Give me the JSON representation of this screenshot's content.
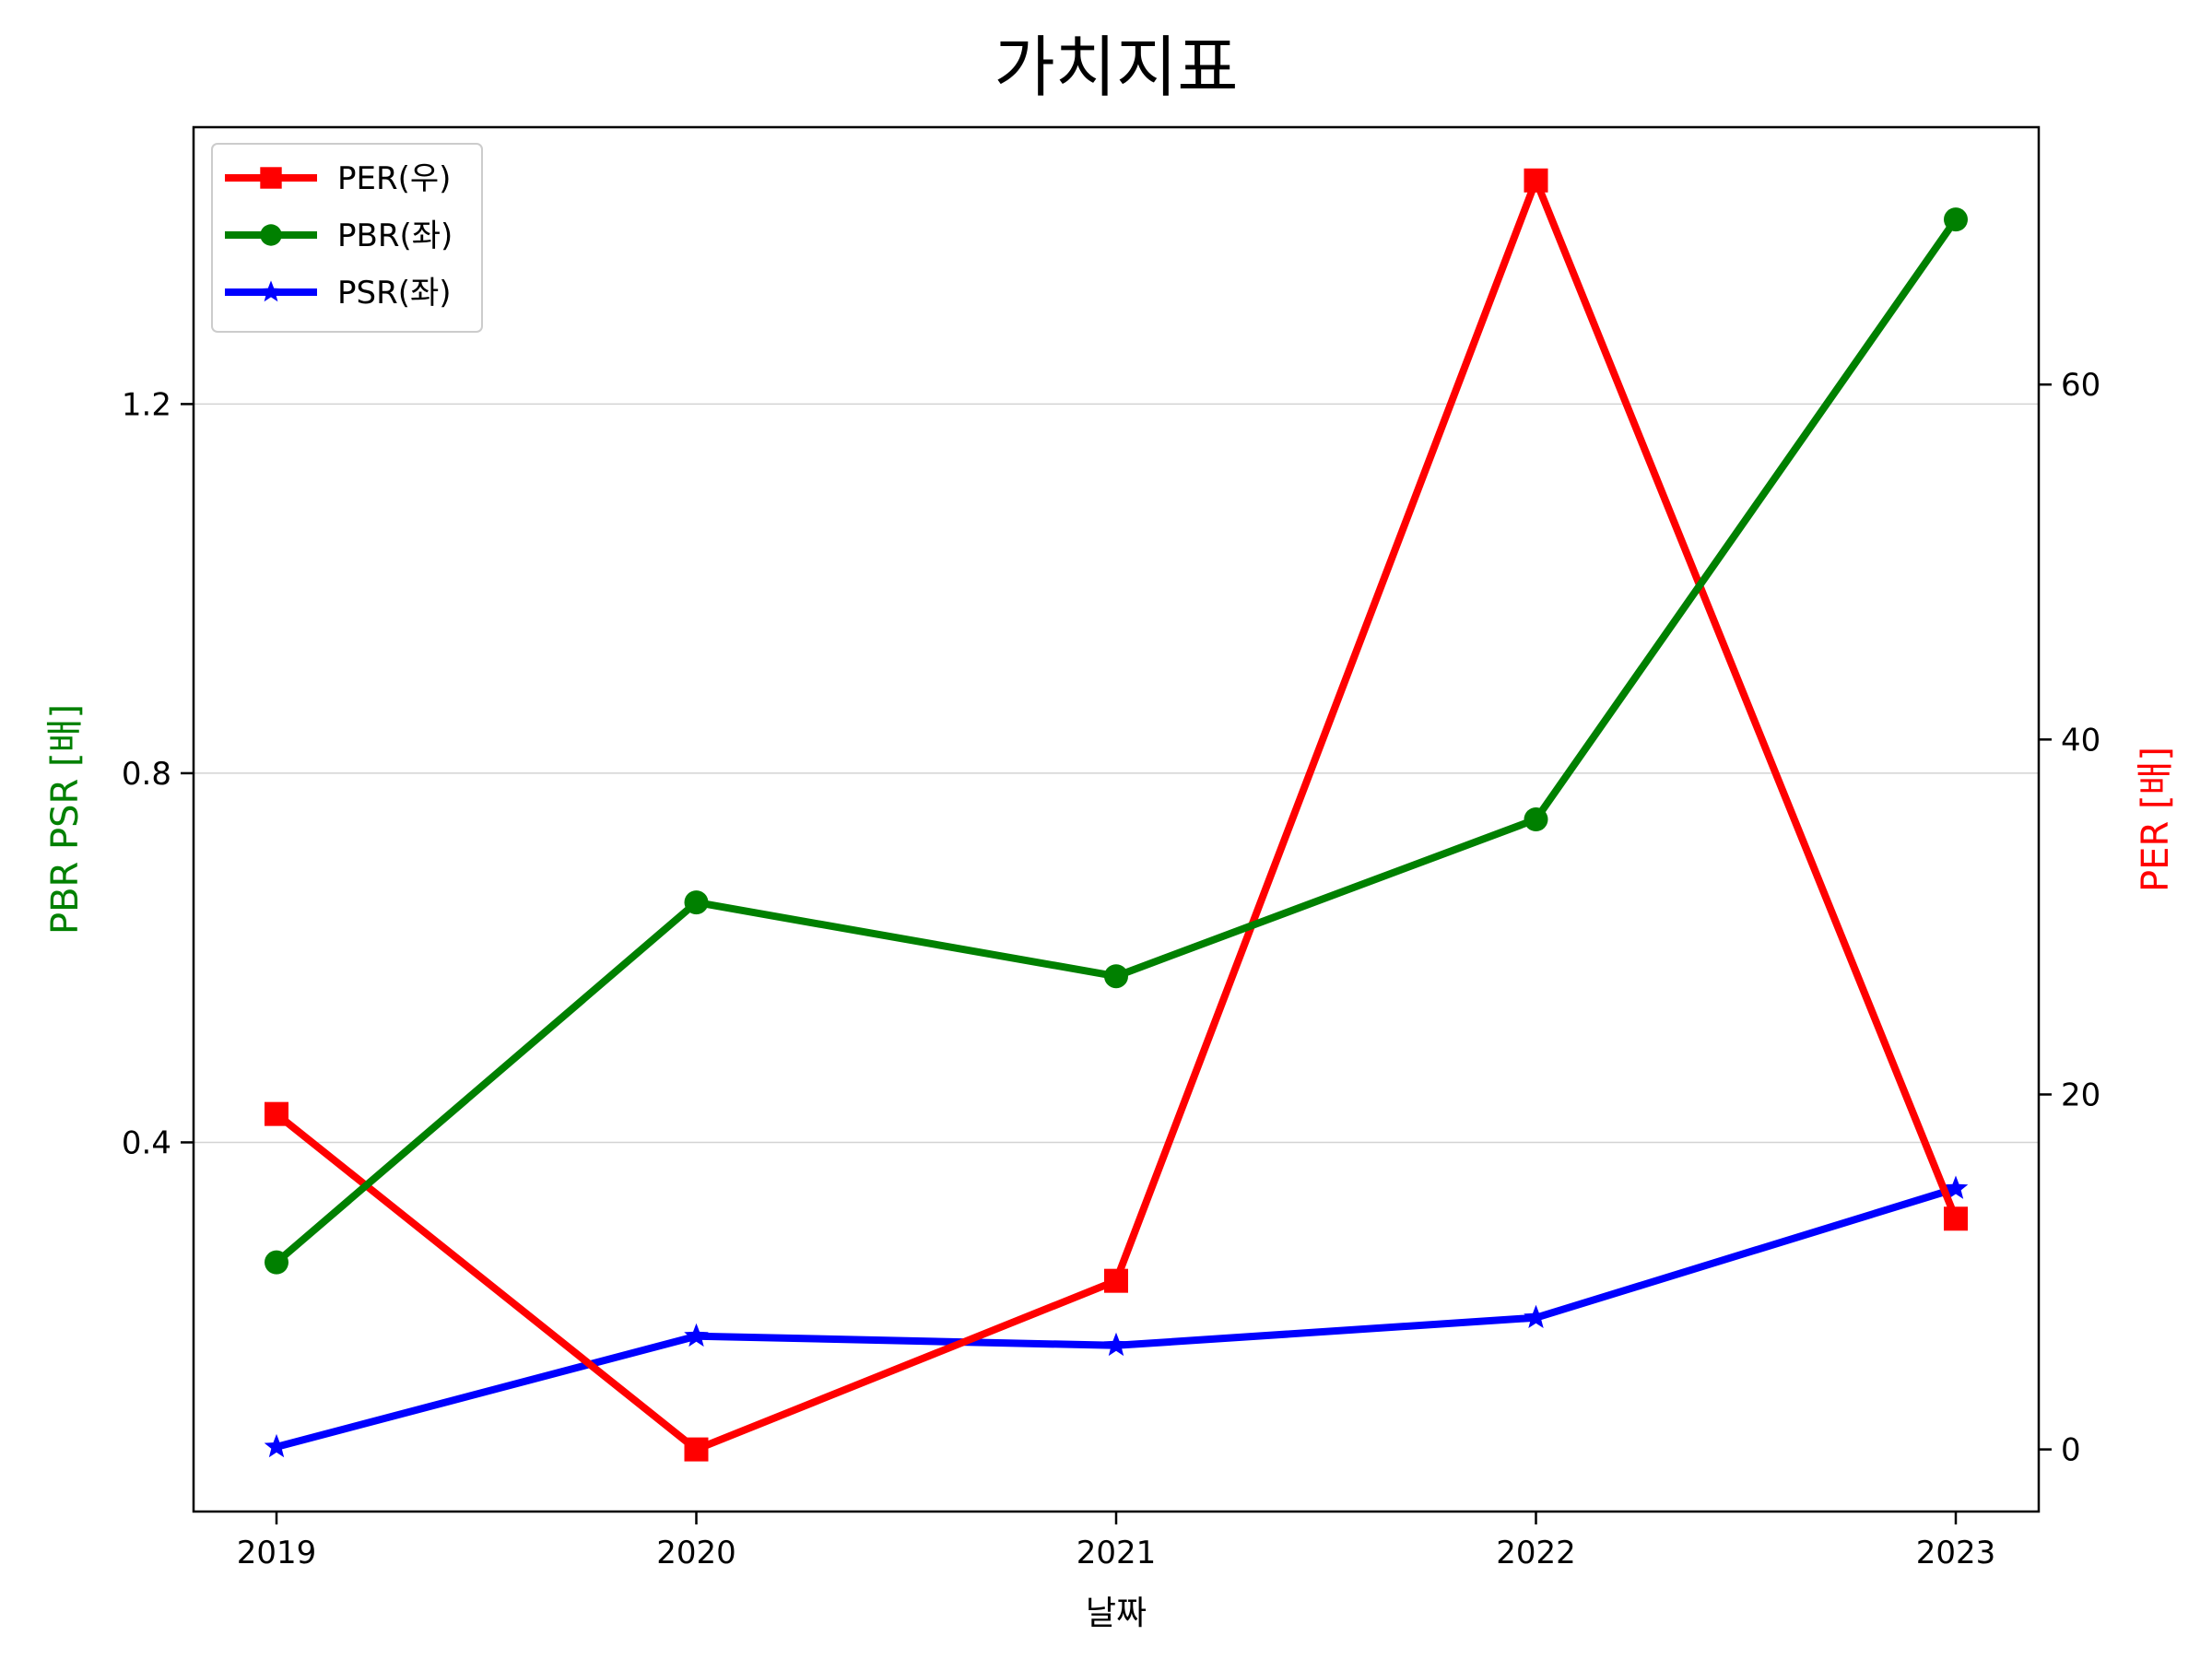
{
  "chart_data": {
    "type": "line",
    "title": "가치지표",
    "xlabel": "날짜",
    "ylabel_left": "PBR PSR [배]",
    "ylabel_right": "PER [배]",
    "x": [
      "2019",
      "2020",
      "2021",
      "2022",
      "2023"
    ],
    "left_ticks": [
      "0.4",
      "0.8",
      "1.2"
    ],
    "right_ticks": [
      "0",
      "20",
      "40",
      "60"
    ],
    "ylim_left": [
      0.0,
      1.5
    ],
    "ylim_right": [
      -3.5,
      74.5
    ],
    "grid": "horizontal, left axis",
    "legend_position": "upper-left",
    "series": [
      {
        "name": "PER(우)",
        "axis": "right",
        "color": "#ff0000",
        "marker": "square",
        "values": [
          18.9,
          0.0,
          9.5,
          71.5,
          13.0
        ]
      },
      {
        "name": "PBR(좌)",
        "axis": "left",
        "color": "#008000",
        "marker": "circle",
        "values": [
          0.27,
          0.66,
          0.58,
          0.75,
          1.4
        ]
      },
      {
        "name": "PSR(좌)",
        "axis": "left",
        "color": "#0000ff",
        "marker": "star",
        "values": [
          0.07,
          0.19,
          0.18,
          0.21,
          0.35
        ]
      }
    ]
  }
}
